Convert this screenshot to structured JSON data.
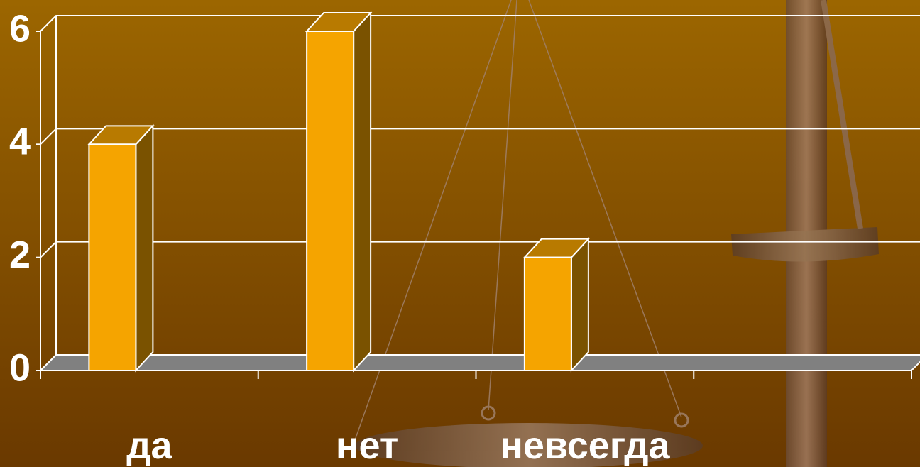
{
  "chart_data": {
    "type": "bar3d",
    "categories": [
      "да",
      "нет",
      "невсегда",
      null
    ],
    "values": [
      4,
      6,
      2,
      null
    ],
    "color": "#f5a400",
    "ylim": [
      0,
      6
    ],
    "yticks": [
      0,
      2,
      4,
      6
    ],
    "grid": true
  }
}
